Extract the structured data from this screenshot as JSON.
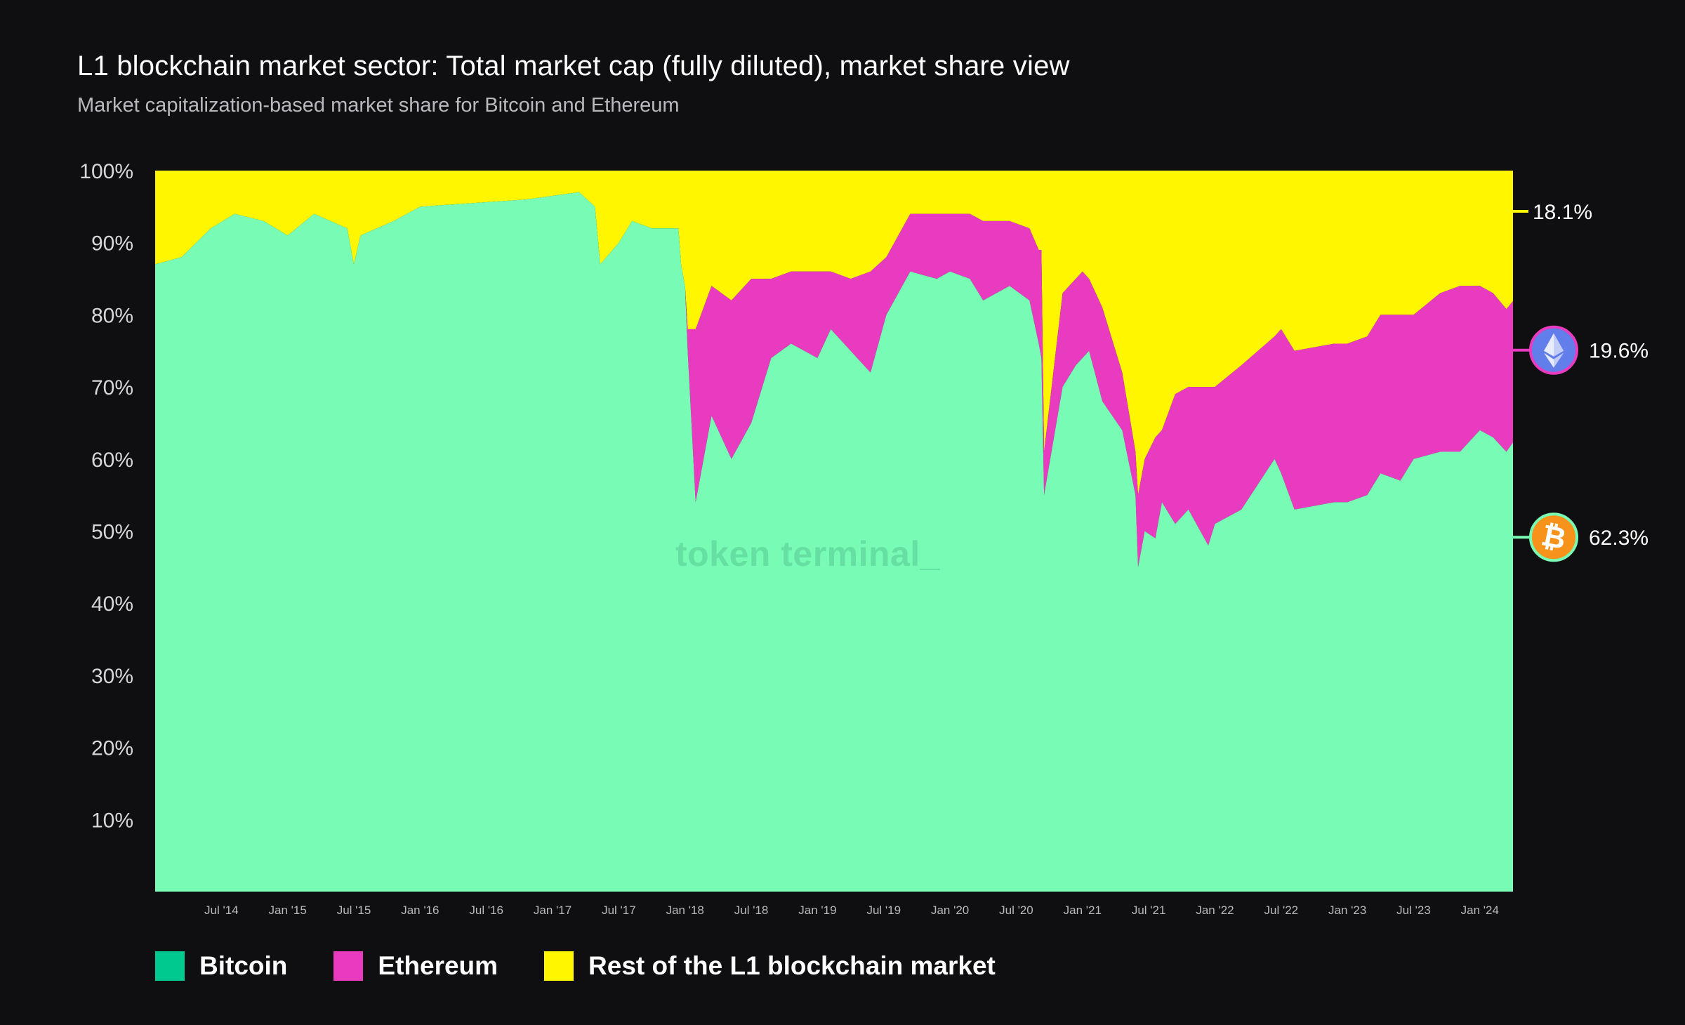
{
  "header": {
    "title": "L1 blockchain market sector: Total market cap (fully diluted), market share view",
    "subtitle": "Market capitalization-based market share for Bitcoin and Ethereum"
  },
  "watermark": "token terminal_",
  "colors": {
    "background": "#0f0f11",
    "bitcoin": "#78fbb4",
    "bitcoin_legend": "#00c98f",
    "ethereum": "#e83bbf",
    "rest": "#fff600",
    "eth_icon": "#627eea",
    "btc_icon": "#f7931a"
  },
  "legend": [
    {
      "label": "Bitcoin",
      "color": "#00c98f"
    },
    {
      "label": "Ethereum",
      "color": "#e83bbf"
    },
    {
      "label": "Rest of the L1 blockchain market",
      "color": "#fff600"
    }
  ],
  "end_labels": [
    {
      "series": "Rest of the L1 blockchain market",
      "text": "18.1%",
      "icon": "none"
    },
    {
      "series": "Ethereum",
      "text": "19.6%",
      "icon": "ethereum-icon"
    },
    {
      "series": "Bitcoin",
      "text": "62.3%",
      "icon": "bitcoin-icon"
    }
  ],
  "chart_data": {
    "type": "area",
    "stacked": true,
    "y_tick_labels": [
      "100%",
      "90%",
      "80%",
      "70%",
      "60%",
      "50%",
      "40%",
      "30%",
      "20%",
      "10%"
    ],
    "y_ticks": [
      100,
      90,
      80,
      70,
      60,
      50,
      40,
      30,
      20,
      10
    ],
    "ylim": [
      0,
      100
    ],
    "x_tick_labels": [
      "Jul '14",
      "Jan '15",
      "Jul '15",
      "Jan '16",
      "Jul '16",
      "Jan '17",
      "Jul '17",
      "Jan '18",
      "Jul '18",
      "Jan '19",
      "Jul '19",
      "Jan '20",
      "Jul '20",
      "Jan '21",
      "Jul '21",
      "Jan '22",
      "Jul '22",
      "Jan '23",
      "Jul '23",
      "Jan '24"
    ],
    "x_ticks": [
      2014.5,
      2015.0,
      2015.5,
      2016.0,
      2016.5,
      2017.0,
      2017.5,
      2018.0,
      2018.5,
      2019.0,
      2019.5,
      2020.0,
      2020.5,
      2021.0,
      2021.5,
      2022.0,
      2022.5,
      2023.0,
      2023.5,
      2024.0
    ],
    "xlim": [
      2014.0,
      2024.25
    ],
    "grid": false,
    "legend_position": "bottom-left",
    "x": [
      2014.0,
      2014.2,
      2014.42,
      2014.6,
      2014.82,
      2015.0,
      2015.2,
      2015.45,
      2015.5,
      2015.55,
      2015.8,
      2016.0,
      2016.4,
      2016.8,
      2017.0,
      2017.2,
      2017.32,
      2017.36,
      2017.5,
      2017.6,
      2017.75,
      2017.95,
      2017.97,
      2018.0,
      2018.02,
      2018.08,
      2018.12,
      2018.2,
      2018.35,
      2018.5,
      2018.65,
      2018.8,
      2019.0,
      2019.1,
      2019.25,
      2019.4,
      2019.52,
      2019.7,
      2019.9,
      2020.0,
      2020.15,
      2020.25,
      2020.45,
      2020.6,
      2020.67,
      2020.69,
      2020.71,
      2020.85,
      2020.95,
      2021.0,
      2021.05,
      2021.15,
      2021.3,
      2021.4,
      2021.42,
      2021.47,
      2021.55,
      2021.6,
      2021.7,
      2021.8,
      2021.95,
      2022.0,
      2022.2,
      2022.45,
      2022.5,
      2022.6,
      2022.9,
      2023.0,
      2023.15,
      2023.25,
      2023.4,
      2023.5,
      2023.7,
      2023.85,
      2024.0,
      2024.1,
      2024.2,
      2024.25
    ],
    "series": [
      {
        "name": "Bitcoin",
        "values": [
          87,
          88,
          92,
          94,
          93,
          91,
          94,
          92,
          87,
          91,
          93,
          95,
          95.5,
          96,
          96.5,
          97,
          95,
          87,
          90,
          93,
          92,
          92,
          87,
          84,
          75,
          54,
          58,
          66,
          60,
          65,
          74,
          76,
          74,
          78,
          75,
          72,
          80,
          86,
          85,
          86,
          85,
          82,
          84,
          82,
          76,
          74,
          55,
          70,
          73,
          74,
          75,
          68,
          64,
          55,
          45,
          50,
          49,
          54,
          51,
          53,
          48,
          51,
          53,
          60,
          58,
          53,
          54,
          54,
          55,
          58,
          57,
          60,
          61,
          61,
          64,
          63,
          61,
          62.3
        ]
      },
      {
        "name": "Ethereum",
        "values": [
          0,
          0,
          0,
          0,
          0,
          0,
          0,
          0,
          0,
          0,
          0,
          0,
          0,
          0,
          0,
          0,
          0,
          0,
          0,
          0,
          0,
          0,
          0,
          0,
          3,
          24,
          22,
          18,
          22,
          20,
          11,
          10,
          12,
          8,
          10,
          14,
          8,
          8,
          9,
          8,
          9,
          11,
          9,
          10,
          13,
          15,
          6,
          13,
          12,
          12,
          10,
          13,
          8,
          6,
          10,
          10,
          14,
          10,
          18,
          17,
          22,
          19,
          20,
          17,
          20,
          22,
          22,
          22,
          22,
          22,
          23,
          20,
          22,
          23,
          20,
          20,
          19.8,
          19.6
        ]
      },
      {
        "name": "Rest of the L1 blockchain market",
        "values": [
          13,
          12,
          8,
          6,
          7,
          9,
          6,
          8,
          13,
          9,
          7,
          5,
          4.5,
          4,
          3.5,
          3,
          5,
          13,
          10,
          7,
          8,
          8,
          13,
          16,
          22,
          22,
          20,
          16,
          18,
          15,
          15,
          14,
          14,
          14,
          15,
          14,
          12,
          6,
          6,
          6,
          6,
          7,
          7,
          8,
          11,
          11,
          39,
          17,
          15,
          14,
          15,
          19,
          28,
          39,
          45,
          40,
          37,
          36,
          31,
          30,
          30,
          30,
          27,
          23,
          22,
          25,
          24,
          24,
          23,
          20,
          20,
          20,
          17,
          16,
          16,
          17,
          19.2,
          18.1
        ]
      }
    ]
  }
}
